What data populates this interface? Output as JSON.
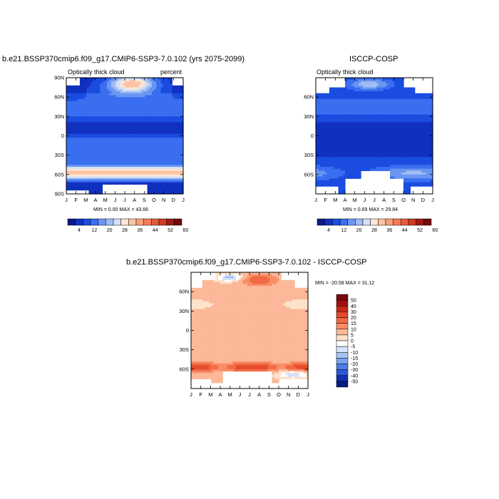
{
  "chart_data": [
    {
      "type": "heatmap",
      "title": "b.e21.BSSP370cmip6.f09_g17.CMIP6-SSP3-7.0.102 (yrs 2075-2099)",
      "subtitle_left": "Optically thick cloud",
      "subtitle_right": "percent",
      "x_ticks": [
        "J",
        "F",
        "M",
        "A",
        "M",
        "J",
        "J",
        "A",
        "S",
        "O",
        "N",
        "D",
        "J"
      ],
      "y_ticks": [
        "90N",
        "60N",
        "30N",
        "0",
        "30S",
        "60S",
        "90S"
      ],
      "stats": "MIN =   0.00 MAX =  43.66",
      "colorbar_ticks": [
        "4",
        "12",
        "20",
        "28",
        "36",
        "44",
        "52",
        "60"
      ]
    },
    {
      "type": "heatmap",
      "title": "ISCCP-COSP",
      "subtitle_left": "Optically thick cloud",
      "x_ticks": [
        "J",
        "F",
        "M",
        "A",
        "M",
        "J",
        "J",
        "A",
        "S",
        "O",
        "N",
        "D",
        "J"
      ],
      "y_ticks": [
        "60N",
        "30N",
        "0",
        "30S",
        "60S"
      ],
      "stats": "MIN =   0.69 MAX =  29.84",
      "colorbar_ticks": [
        "4",
        "12",
        "20",
        "28",
        "36",
        "44",
        "52",
        "60"
      ]
    },
    {
      "type": "heatmap",
      "title": "b.e21.BSSP370cmip6.f09_g17.CMIP6-SSP3-7.0.102 - ISCCP-COSP",
      "x_ticks": [
        "J",
        "F",
        "M",
        "A",
        "M",
        "J",
        "J",
        "A",
        "S",
        "O",
        "N",
        "D",
        "J"
      ],
      "y_ticks": [
        "60N",
        "30N",
        "0",
        "30S",
        "60S"
      ],
      "stats": "MIN = -20.58 MAX =  31.12",
      "colorbar_ticks": [
        "50",
        "40",
        "30",
        "20",
        "15",
        "10",
        "5",
        "0",
        "-5",
        "-10",
        "-15",
        "-20",
        "-30",
        "-40",
        "-50"
      ]
    }
  ],
  "colors": {
    "seq": [
      "#0a1a8c",
      "#1030c0",
      "#1a4ce0",
      "#3a6ef0",
      "#6a96f2",
      "#a0bdf5",
      "#d2e0f8",
      "#fde6d4",
      "#fcc4a4",
      "#f8a07c",
      "#f47c58",
      "#e85a3c",
      "#d03a24",
      "#a01a10",
      "#700a08"
    ],
    "div": [
      "#7a0a0a",
      "#a01010",
      "#c82818",
      "#e44a2c",
      "#f06a44",
      "#f88e68",
      "#fcb898",
      "#fde2cc",
      "#ffffff",
      "#d6e4fa",
      "#a8c4f4",
      "#7aa2ee",
      "#4c7ee8",
      "#2a58d8",
      "#1030b0",
      "#081a80"
    ]
  }
}
